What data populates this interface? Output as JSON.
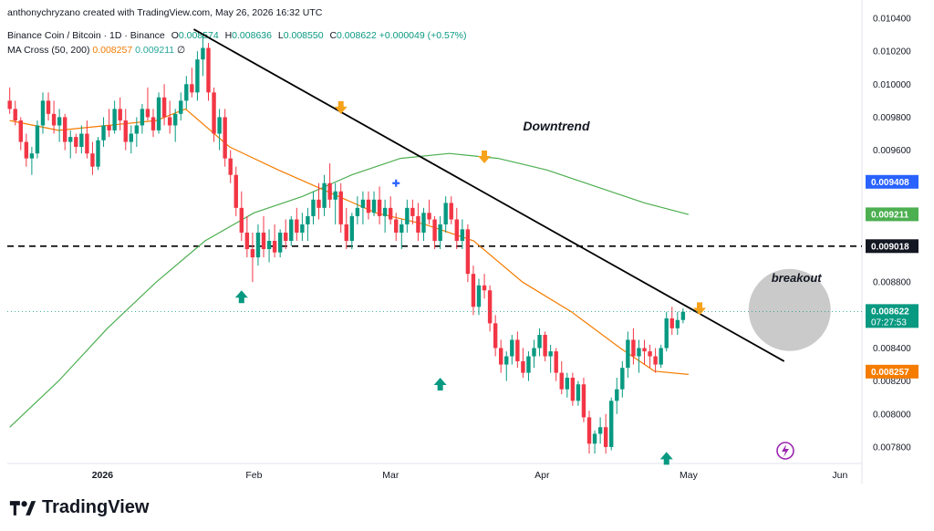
{
  "header": {
    "attribution": "anthonychryzano created with TradingView.com, May 26, 2026 16:32 UTC"
  },
  "legend": {
    "symbol": "Binance Coin / Bitcoin · 1D · Binance",
    "o_label": "O",
    "o_value": "0.008574",
    "h_label": "H",
    "h_value": "0.008636",
    "l_label": "L",
    "l_value": "0.008550",
    "c_label": "C",
    "c_value": "0.008622",
    "change": "+0.000049 (+0.57%)",
    "ma_name": "MA Cross (50, 200)",
    "ma50_value": "0.008257",
    "ma200_value": "0.009211",
    "ma_extra": "∅"
  },
  "footer": {
    "brand": "TradingView"
  },
  "colors": {
    "up": "#089981",
    "down": "#f23645",
    "ma50": "#f57c00",
    "ma200": "#4caf50",
    "trendline": "#000000",
    "marker_up": "#089981",
    "marker_down": "#f7a21b",
    "cross": "#2962ff",
    "price_badge_blue": "#2962ff"
  },
  "chart_data": {
    "type": "candlestick",
    "ylim": [
      0.0077,
      0.0104
    ],
    "x_labels": [
      {
        "label": "2026",
        "day": 19
      },
      {
        "label": "Feb",
        "day": 50
      },
      {
        "label": "Mar",
        "day": 78
      },
      {
        "label": "Apr",
        "day": 109
      },
      {
        "label": "May",
        "day": 139
      },
      {
        "label": "Jun",
        "day": 170
      }
    ],
    "y_ticks": [
      "0.007800",
      "0.008000",
      "0.008200",
      "0.008400",
      "0.008600",
      "0.008800",
      "0.009000",
      "0.009200",
      "0.009400",
      "0.009600",
      "0.009800",
      "0.010000",
      "0.010200",
      "0.010400"
    ],
    "candles": [
      [
        0.0099,
        0.00998,
        0.00982,
        0.00985
      ],
      [
        0.00985,
        0.0099,
        0.00975,
        0.00978
      ],
      [
        0.00978,
        0.0098,
        0.0096,
        0.00965
      ],
      [
        0.00965,
        0.0097,
        0.0095,
        0.00955
      ],
      [
        0.00955,
        0.00962,
        0.00945,
        0.00958
      ],
      [
        0.00958,
        0.00978,
        0.00955,
        0.00975
      ],
      [
        0.00975,
        0.00995,
        0.0097,
        0.0099
      ],
      [
        0.0099,
        0.00995,
        0.00978,
        0.00982
      ],
      [
        0.00982,
        0.0099,
        0.0097,
        0.00975
      ],
      [
        0.00975,
        0.00985,
        0.00965,
        0.0098
      ],
      [
        0.0098,
        0.00982,
        0.0096,
        0.00965
      ],
      [
        0.00965,
        0.00972,
        0.00955,
        0.00968
      ],
      [
        0.00968,
        0.0097,
        0.00958,
        0.00962
      ],
      [
        0.00962,
        0.00975,
        0.00958,
        0.0097
      ],
      [
        0.0097,
        0.00978,
        0.00955,
        0.00958
      ],
      [
        0.00958,
        0.00965,
        0.00945,
        0.0095
      ],
      [
        0.0095,
        0.00968,
        0.00948,
        0.00966
      ],
      [
        0.00966,
        0.0098,
        0.00962,
        0.00975
      ],
      [
        0.00975,
        0.00985,
        0.00968,
        0.00972
      ],
      [
        0.00972,
        0.0099,
        0.0097,
        0.00985
      ],
      [
        0.00985,
        0.00992,
        0.00972,
        0.00978
      ],
      [
        0.00978,
        0.00985,
        0.0096,
        0.00965
      ],
      [
        0.00965,
        0.00975,
        0.00958,
        0.0097
      ],
      [
        0.0097,
        0.0098,
        0.00962,
        0.00975
      ],
      [
        0.00975,
        0.00988,
        0.0097,
        0.00985
      ],
      [
        0.00985,
        0.00998,
        0.00978,
        0.0098
      ],
      [
        0.0098,
        0.00985,
        0.00968,
        0.00972
      ],
      [
        0.00972,
        0.00995,
        0.0097,
        0.00992
      ],
      [
        0.00992,
        0.01,
        0.00975,
        0.0098
      ],
      [
        0.0098,
        0.0099,
        0.0097,
        0.00975
      ],
      [
        0.00975,
        0.00985,
        0.00965,
        0.00982
      ],
      [
        0.00982,
        0.00995,
        0.00978,
        0.0099
      ],
      [
        0.0099,
        0.01005,
        0.00985,
        0.01
      ],
      [
        0.01,
        0.0101,
        0.00992,
        0.00995
      ],
      [
        0.00995,
        0.0102,
        0.0099,
        0.01015
      ],
      [
        0.01015,
        0.0103,
        0.01005,
        0.01022
      ],
      [
        0.01022,
        0.01025,
        0.0099,
        0.00995
      ],
      [
        0.00995,
        0.00998,
        0.00965,
        0.0097
      ],
      [
        0.0097,
        0.00985,
        0.0096,
        0.0098
      ],
      [
        0.0098,
        0.00985,
        0.0095,
        0.00955
      ],
      [
        0.00955,
        0.0096,
        0.0094,
        0.00945
      ],
      [
        0.00945,
        0.0095,
        0.0092,
        0.00925
      ],
      [
        0.00925,
        0.00935,
        0.00905,
        0.0091
      ],
      [
        0.0091,
        0.0092,
        0.00895,
        0.009
      ],
      [
        0.009,
        0.0091,
        0.0088,
        0.00895
      ],
      [
        0.00895,
        0.00915,
        0.0089,
        0.0091
      ],
      [
        0.0091,
        0.0092,
        0.00895,
        0.009
      ],
      [
        0.009,
        0.00912,
        0.00892,
        0.00905
      ],
      [
        0.00905,
        0.00915,
        0.00895,
        0.00898
      ],
      [
        0.00898,
        0.00912,
        0.00895,
        0.0091
      ],
      [
        0.0091,
        0.00918,
        0.009,
        0.00905
      ],
      [
        0.00905,
        0.0092,
        0.00902,
        0.00918
      ],
      [
        0.00918,
        0.00925,
        0.00905,
        0.0091
      ],
      [
        0.0091,
        0.00922,
        0.00905,
        0.00915
      ],
      [
        0.00915,
        0.00925,
        0.00905,
        0.0092
      ],
      [
        0.0092,
        0.00935,
        0.00915,
        0.0093
      ],
      [
        0.0093,
        0.0094,
        0.00918,
        0.00925
      ],
      [
        0.00925,
        0.00945,
        0.0092,
        0.0094
      ],
      [
        0.0094,
        0.00952,
        0.00925,
        0.0093
      ],
      [
        0.0093,
        0.0094,
        0.00915,
        0.00935
      ],
      [
        0.00935,
        0.0094,
        0.0091,
        0.00915
      ],
      [
        0.00915,
        0.00925,
        0.009,
        0.00905
      ],
      [
        0.00905,
        0.00922,
        0.009,
        0.0092
      ],
      [
        0.0092,
        0.00932,
        0.00915,
        0.00925
      ],
      [
        0.00925,
        0.00935,
        0.00915,
        0.0093
      ],
      [
        0.0093,
        0.00935,
        0.00918,
        0.00922
      ],
      [
        0.00922,
        0.00935,
        0.0092,
        0.0093
      ],
      [
        0.0093,
        0.00938,
        0.00915,
        0.0092
      ],
      [
        0.0092,
        0.0093,
        0.0091,
        0.00925
      ],
      [
        0.00925,
        0.00932,
        0.00915,
        0.00918
      ],
      [
        0.00918,
        0.00922,
        0.00905,
        0.0091
      ],
      [
        0.0091,
        0.00918,
        0.009,
        0.00915
      ],
      [
        0.00915,
        0.0093,
        0.0091,
        0.00925
      ],
      [
        0.00925,
        0.0093,
        0.00915,
        0.0092
      ],
      [
        0.0092,
        0.00928,
        0.00905,
        0.0091
      ],
      [
        0.0091,
        0.00925,
        0.00905,
        0.00922
      ],
      [
        0.00922,
        0.0093,
        0.00915,
        0.00918
      ],
      [
        0.00918,
        0.0092,
        0.009,
        0.00905
      ],
      [
        0.00905,
        0.0092,
        0.009,
        0.00915
      ],
      [
        0.00915,
        0.00932,
        0.0091,
        0.00928
      ],
      [
        0.00928,
        0.00932,
        0.00915,
        0.00918
      ],
      [
        0.00918,
        0.00925,
        0.009,
        0.00905
      ],
      [
        0.00905,
        0.00918,
        0.009,
        0.00912
      ],
      [
        0.00912,
        0.00915,
        0.0088,
        0.00885
      ],
      [
        0.00885,
        0.0089,
        0.0086,
        0.00865
      ],
      [
        0.00865,
        0.00882,
        0.0086,
        0.00878
      ],
      [
        0.00878,
        0.00885,
        0.0087,
        0.00875
      ],
      [
        0.00875,
        0.00878,
        0.0085,
        0.00855
      ],
      [
        0.00855,
        0.0086,
        0.00835,
        0.0084
      ],
      [
        0.0084,
        0.00845,
        0.00825,
        0.0083
      ],
      [
        0.0083,
        0.00838,
        0.0082,
        0.00835
      ],
      [
        0.00835,
        0.00848,
        0.0083,
        0.00845
      ],
      [
        0.00845,
        0.0085,
        0.00828,
        0.00832
      ],
      [
        0.00832,
        0.0084,
        0.00822,
        0.00825
      ],
      [
        0.00825,
        0.00838,
        0.0082,
        0.00835
      ],
      [
        0.00835,
        0.00845,
        0.00828,
        0.0084
      ],
      [
        0.0084,
        0.00852,
        0.00835,
        0.00848
      ],
      [
        0.00848,
        0.0085,
        0.00832,
        0.00835
      ],
      [
        0.00835,
        0.00842,
        0.00825,
        0.00838
      ],
      [
        0.00838,
        0.0084,
        0.0082,
        0.00825
      ],
      [
        0.00825,
        0.00832,
        0.00812,
        0.00815
      ],
      [
        0.00815,
        0.00825,
        0.0081,
        0.00822
      ],
      [
        0.00822,
        0.00825,
        0.00805,
        0.00808
      ],
      [
        0.00808,
        0.0082,
        0.00805,
        0.00818
      ],
      [
        0.00818,
        0.00822,
        0.00795,
        0.00798
      ],
      [
        0.00798,
        0.00802,
        0.00776,
        0.00782
      ],
      [
        0.00782,
        0.0079,
        0.00776,
        0.00788
      ],
      [
        0.00788,
        0.00798,
        0.00782,
        0.00792
      ],
      [
        0.00792,
        0.008,
        0.00776,
        0.0078
      ],
      [
        0.0078,
        0.0081,
        0.00778,
        0.00808
      ],
      [
        0.00808,
        0.00822,
        0.008,
        0.00815
      ],
      [
        0.00815,
        0.00832,
        0.0081,
        0.00828
      ],
      [
        0.00828,
        0.0085,
        0.00822,
        0.00845
      ],
      [
        0.00845,
        0.00852,
        0.0083,
        0.00835
      ],
      [
        0.00835,
        0.00845,
        0.00825,
        0.0084
      ],
      [
        0.0084,
        0.00845,
        0.0083,
        0.00838
      ],
      [
        0.00838,
        0.00842,
        0.00828,
        0.00835
      ],
      [
        0.00835,
        0.0084,
        0.00825,
        0.0083
      ],
      [
        0.0083,
        0.00842,
        0.00828,
        0.0084
      ],
      [
        0.0084,
        0.00862,
        0.00838,
        0.00858
      ],
      [
        0.00858,
        0.00865,
        0.00848,
        0.00852
      ],
      [
        0.00852,
        0.00862,
        0.00848,
        0.00857
      ],
      [
        0.00857,
        0.00864,
        0.00855,
        0.00862
      ]
    ],
    "ma50": [
      [
        0,
        0.00978
      ],
      [
        10,
        0.00972
      ],
      [
        20,
        0.00975
      ],
      [
        30,
        0.00978
      ],
      [
        36,
        0.00985
      ],
      [
        45,
        0.00962
      ],
      [
        55,
        0.00948
      ],
      [
        65,
        0.00935
      ],
      [
        75,
        0.00922
      ],
      [
        85,
        0.00915
      ],
      [
        95,
        0.00905
      ],
      [
        105,
        0.0088
      ],
      [
        115,
        0.00862
      ],
      [
        125,
        0.0084
      ],
      [
        132,
        0.00826
      ],
      [
        139,
        0.00824
      ]
    ],
    "ma200": [
      [
        0,
        0.00792
      ],
      [
        10,
        0.0082
      ],
      [
        20,
        0.00852
      ],
      [
        30,
        0.0088
      ],
      [
        40,
        0.00905
      ],
      [
        50,
        0.00922
      ],
      [
        60,
        0.00932
      ],
      [
        70,
        0.00945
      ],
      [
        80,
        0.00955
      ],
      [
        90,
        0.00958
      ],
      [
        100,
        0.00955
      ],
      [
        110,
        0.00948
      ],
      [
        120,
        0.00938
      ],
      [
        130,
        0.00928
      ],
      [
        139,
        0.00921
      ]
    ],
    "reference_level": 0.009018,
    "trendline": [
      [
        35,
        0.0103
      ],
      [
        138,
        0.00832
      ]
    ],
    "up_markers": [
      [
        42,
        0.00875
      ],
      [
        78,
        0.00822
      ],
      [
        119,
        0.00777
      ]
    ],
    "down_markers": [
      [
        60,
        0.00982
      ],
      [
        86,
        0.00952
      ],
      [
        125,
        0.0086
      ]
    ],
    "cross_marker": [
      70,
      0.0094
    ],
    "annotations": {
      "downtrend": {
        "text": "Downtrend",
        "x": 93,
        "y": 0.00972
      },
      "breakout": {
        "text": "breakout",
        "x": 139,
        "y": 0.0088
      }
    },
    "badges": [
      {
        "value": "0.009408",
        "kind": "blue"
      },
      {
        "value": "0.009211",
        "kind": "green"
      },
      {
        "value": "0.009018",
        "kind": "black"
      },
      {
        "value": "0.008622",
        "sub": "07:27:53",
        "kind": "teal"
      },
      {
        "value": "0.008257",
        "kind": "orange"
      }
    ]
  }
}
